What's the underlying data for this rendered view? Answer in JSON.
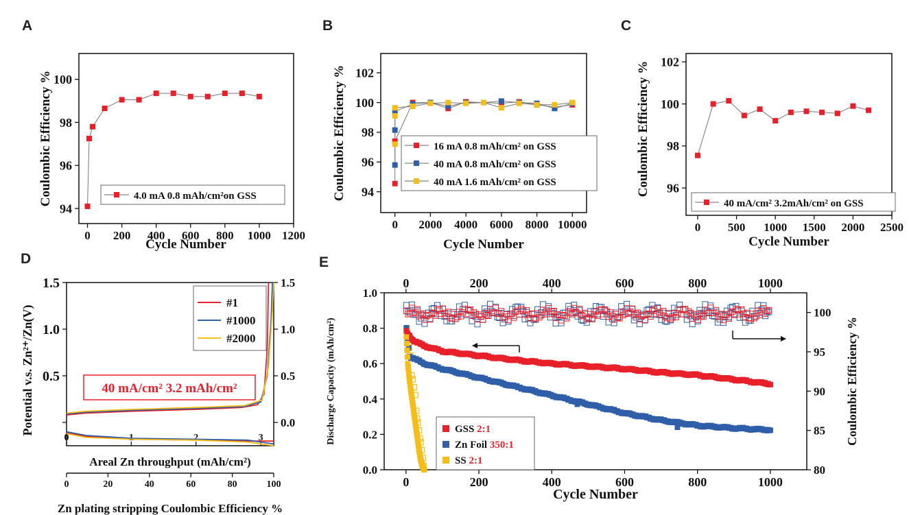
{
  "figure": {
    "panel_letters": [
      "A",
      "B",
      "C",
      "D",
      "E"
    ]
  },
  "colors": {
    "red": "#e8202a",
    "blue": "#2f5fa8",
    "yellow": "#f5bd17",
    "dark": "#111111"
  },
  "chart_data": [
    {
      "id": "A",
      "type": "scatter",
      "xlabel": "Cycle Number",
      "ylabel": "Coulombic Efficiency %",
      "xlim": [
        -50,
        1200
      ],
      "ylim": [
        93.3,
        101.2
      ],
      "xticks": [
        0,
        200,
        400,
        600,
        800,
        1000,
        1200
      ],
      "yticks": [
        94,
        96,
        98,
        100
      ],
      "series": [
        {
          "name": "4.0 mA  0.8 mAh/cm²on GSS",
          "color": "#e8202a",
          "x": [
            0,
            10,
            30,
            100,
            200,
            300,
            400,
            500,
            600,
            700,
            800,
            900,
            1000
          ],
          "y": [
            94.1,
            97.25,
            97.8,
            98.65,
            99.05,
            99.05,
            99.35,
            99.35,
            99.2,
            99.2,
            99.35,
            99.35,
            99.2
          ]
        }
      ],
      "legend": "bottom-right"
    },
    {
      "id": "B",
      "type": "scatter",
      "xlabel": "Cycle Number",
      "ylabel": "Coulombic Efficiency %",
      "xlim": [
        -800,
        10800
      ],
      "ylim": [
        92.6,
        103.3
      ],
      "xticks": [
        0,
        2000,
        4000,
        6000,
        8000,
        10000
      ],
      "yticks": [
        94,
        96,
        98,
        100,
        102
      ],
      "series": [
        {
          "name": "16 mA 0.8 mAh/cm² on GSS",
          "color": "#e8202a",
          "x": [
            0,
            0,
            1000,
            2000,
            3000,
            4000,
            5000,
            6000,
            7000,
            8000,
            9000,
            10000
          ],
          "y": [
            94.55,
            97.4,
            100.0,
            100.0,
            99.6,
            100.05,
            100.0,
            99.95,
            100.05,
            99.85,
            99.7,
            99.85
          ]
        },
        {
          "name": "40 mA 0.8 mAh/cm² on GSS",
          "color": "#2f5fa8",
          "x": [
            0,
            0,
            0,
            1000,
            2000,
            3000,
            4000,
            5000,
            6000,
            7000,
            8000,
            9000,
            10000
          ],
          "y": [
            95.8,
            98.15,
            99.4,
            99.9,
            100.0,
            99.75,
            100.0,
            100.0,
            100.1,
            100.0,
            99.95,
            99.6,
            99.95
          ]
        },
        {
          "name": "40 mA 1.6 mAh/cm² on GSS",
          "color": "#f5bd17",
          "x": [
            0,
            0,
            0,
            1000,
            2000,
            3000,
            4000,
            5000,
            6000,
            7000,
            8000,
            9000,
            10000
          ],
          "y": [
            97.2,
            99.1,
            99.65,
            99.75,
            99.95,
            100.0,
            99.95,
            100.0,
            99.65,
            99.95,
            99.85,
            99.85,
            100.0
          ]
        }
      ],
      "legend": "bottom-right"
    },
    {
      "id": "C",
      "type": "scatter",
      "xlabel": "Cycle Number",
      "ylabel": "Coulombic Efficiency %",
      "xlim": [
        -150,
        2500
      ],
      "ylim": [
        94.7,
        102.4
      ],
      "xticks": [
        0,
        500,
        1000,
        1500,
        2000,
        2500
      ],
      "yticks": [
        96,
        98,
        100,
        102
      ],
      "series": [
        {
          "name": "40 mA/cm² 3.2mAh/cm² on GSS",
          "color": "#e8202a",
          "x": [
            0,
            200,
            400,
            600,
            800,
            1000,
            1200,
            1400,
            1600,
            1800,
            2000,
            2200
          ],
          "y": [
            97.55,
            100.0,
            100.15,
            99.45,
            99.75,
            99.2,
            99.6,
            99.65,
            99.6,
            99.55,
            99.9,
            99.7
          ]
        }
      ],
      "legend": "bottom-right"
    },
    {
      "id": "D",
      "type": "line",
      "xlabel": "Areal Zn throughput (mAh/cm²)",
      "x2label": "Zn plating stripping Coulombic Efficiency %",
      "ylabel": "Potential  v.s. Zn²⁺/Zn(V)",
      "annotation": "40 mA/cm² 3.2 mAh/cm²",
      "xlim": [
        0,
        3.2
      ],
      "x2lim": [
        0,
        100
      ],
      "ylim": [
        -0.25,
        1.5
      ],
      "xticks": [
        0,
        1,
        2,
        3
      ],
      "x2ticks": [
        0,
        20,
        40,
        60,
        80,
        100
      ],
      "yticks": [
        0.0,
        0.5,
        1.0,
        1.5
      ],
      "y_tick_labels": [
        "",
        "0.5",
        "1.0",
        "1.5"
      ],
      "y2_tick_labels": [
        "0.0",
        "0.5",
        "1.0",
        "1.5"
      ],
      "series": [
        {
          "name": "#1",
          "color": "#e8202a",
          "charge": [
            [
              0,
              0.08
            ],
            [
              0.3,
              0.1
            ],
            [
              1.0,
              0.12
            ],
            [
              2.0,
              0.14
            ],
            [
              2.7,
              0.16
            ],
            [
              2.95,
              0.19
            ],
            [
              3.05,
              0.3
            ],
            [
              3.1,
              0.8
            ],
            [
              3.12,
              1.5
            ]
          ],
          "discharge": [
            [
              0,
              -0.11
            ],
            [
              0.3,
              -0.15
            ],
            [
              1.0,
              -0.18
            ],
            [
              2.0,
              -0.19
            ],
            [
              2.7,
              -0.2
            ],
            [
              3.0,
              -0.2
            ],
            [
              3.2,
              -0.2
            ]
          ]
        },
        {
          "name": "#1000",
          "color": "#2f5fa8",
          "charge": [
            [
              0,
              0.09
            ],
            [
              0.3,
              0.11
            ],
            [
              1.0,
              0.13
            ],
            [
              2.0,
              0.15
            ],
            [
              2.75,
              0.17
            ],
            [
              3.0,
              0.22
            ],
            [
              3.1,
              0.5
            ],
            [
              3.16,
              1.1
            ],
            [
              3.18,
              1.5
            ]
          ],
          "discharge": [
            [
              0,
              -0.1
            ],
            [
              0.3,
              -0.14
            ],
            [
              1.0,
              -0.17
            ],
            [
              2.0,
              -0.18
            ],
            [
              2.8,
              -0.19
            ],
            [
              3.0,
              -0.21
            ],
            [
              3.2,
              -0.23
            ]
          ]
        },
        {
          "name": "#2000",
          "color": "#f5bd17",
          "charge": [
            [
              0,
              0.1
            ],
            [
              0.3,
              0.12
            ],
            [
              1.0,
              0.14
            ],
            [
              2.0,
              0.16
            ],
            [
              2.75,
              0.18
            ],
            [
              3.02,
              0.24
            ],
            [
              3.12,
              0.6
            ],
            [
              3.18,
              1.2
            ],
            [
              3.2,
              1.5
            ]
          ],
          "discharge": [
            [
              0,
              -0.12
            ],
            [
              0.3,
              -0.16
            ],
            [
              1.0,
              -0.18
            ],
            [
              2.0,
              -0.19
            ],
            [
              2.8,
              -0.21
            ],
            [
              3.0,
              -0.23
            ],
            [
              3.2,
              -0.25
            ]
          ]
        }
      ],
      "legend": "top-right"
    },
    {
      "id": "E",
      "type": "scatter",
      "xlabel": "Cycle Number",
      "ylabel": "Discharge Capacity (mAh/cm²)",
      "y2label": "Coulombic  Efficiency %",
      "xlim": [
        -60,
        1100
      ],
      "ylim": [
        0,
        1.0
      ],
      "y2lim": [
        80,
        102.5
      ],
      "xticks": [
        0,
        200,
        400,
        600,
        800,
        1000
      ],
      "yticks": [
        0.0,
        0.2,
        0.4,
        0.6,
        0.8,
        1.0
      ],
      "y2ticks": [
        80,
        85,
        90,
        95,
        100
      ],
      "series": [
        {
          "name": "GSS",
          "ratio": "2:1",
          "color": "#e8202a",
          "capacity": [
            [
              1,
              0.78
            ],
            [
              20,
              0.73
            ],
            [
              50,
              0.7
            ],
            [
              100,
              0.67
            ],
            [
              200,
              0.645
            ],
            [
              300,
              0.62
            ],
            [
              400,
              0.6
            ],
            [
              500,
              0.585
            ],
            [
              600,
              0.57
            ],
            [
              700,
              0.55
            ],
            [
              800,
              0.535
            ],
            [
              900,
              0.51
            ],
            [
              1000,
              0.485
            ]
          ],
          "efficiency_mean": 99.8,
          "efficiency_min": 99.0,
          "efficiency_max": 100.6
        },
        {
          "name": "Zn Foil",
          "ratio": "350:1",
          "color": "#2f5fa8",
          "capacity": [
            [
              1,
              0.8
            ],
            [
              10,
              0.64
            ],
            [
              50,
              0.6
            ],
            [
              100,
              0.57
            ],
            [
              200,
              0.52
            ],
            [
              300,
              0.47
            ],
            [
              400,
              0.42
            ],
            [
              500,
              0.37
            ],
            [
              600,
              0.32
            ],
            [
              700,
              0.28
            ],
            [
              800,
              0.25
            ],
            [
              900,
              0.235
            ],
            [
              1000,
              0.225
            ]
          ],
          "outliers": [
            [
              470,
              0.37
            ],
            [
              745,
              0.24
            ]
          ],
          "efficiency_mean": 99.8,
          "efficiency_min": 98.6,
          "efficiency_max": 101.2
        },
        {
          "name": "SS",
          "ratio": "2:1",
          "color": "#f5bd17",
          "capacity": [
            [
              1,
              0.75
            ],
            [
              5,
              0.6
            ],
            [
              10,
              0.5
            ],
            [
              15,
              0.42
            ],
            [
              20,
              0.35
            ],
            [
              25,
              0.27
            ],
            [
              30,
              0.2
            ],
            [
              35,
              0.12
            ],
            [
              40,
              0.06
            ],
            [
              45,
              0.02
            ],
            [
              50,
              0.0
            ]
          ],
          "efficiency": [
            [
              2,
              98.0
            ],
            [
              5,
              96.5
            ],
            [
              8,
              95.5
            ],
            [
              12,
              94.5
            ],
            [
              15,
              92.0
            ],
            [
              18,
              91.5
            ],
            [
              22,
              90.5
            ],
            [
              25,
              89.5
            ],
            [
              28,
              87.5
            ],
            [
              30,
              86.5
            ],
            [
              32,
              86.0
            ],
            [
              35,
              85.0
            ],
            [
              38,
              84.0
            ],
            [
              40,
              83.5
            ],
            [
              43,
              82.5
            ],
            [
              46,
              81.5
            ],
            [
              48,
              80.5
            ]
          ]
        }
      ],
      "legend": "bottom-left"
    }
  ]
}
